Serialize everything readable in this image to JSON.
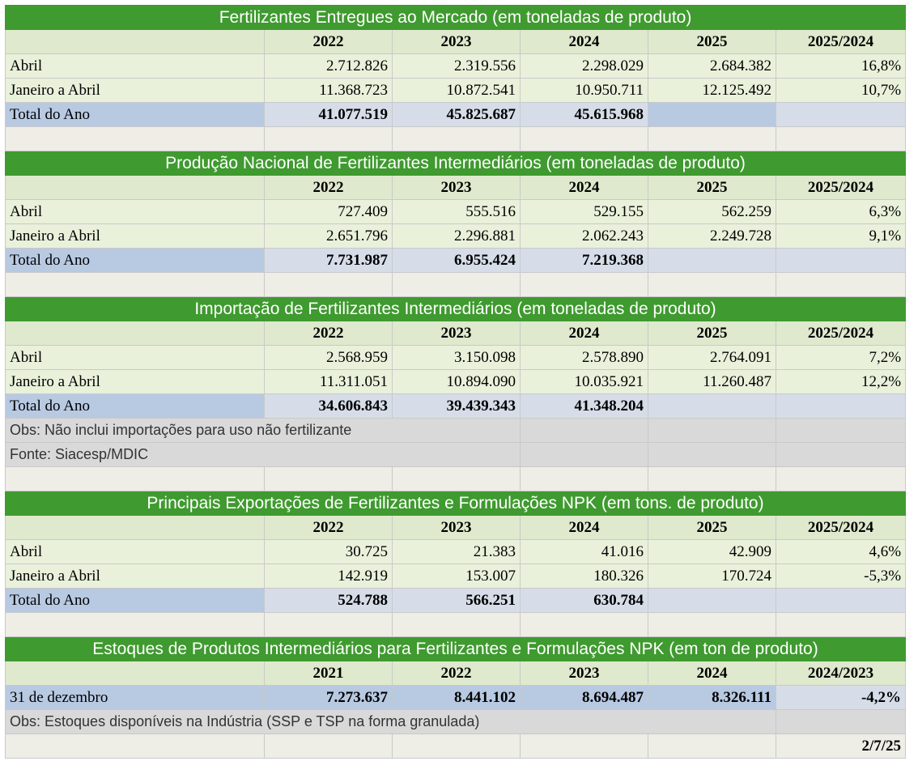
{
  "sec1": {
    "title": "Fertilizantes Entregues ao Mercado (em toneladas de produto)",
    "headers": [
      "2022",
      "2023",
      "2024",
      "2025",
      "2025/2024"
    ],
    "rows": [
      {
        "label": "Abril",
        "values": [
          "2.712.826",
          "2.319.556",
          "2.298.029",
          "2.684.382",
          "16,8%"
        ]
      },
      {
        "label": "Janeiro a Abril",
        "values": [
          "11.368.723",
          "10.872.541",
          "10.950.711",
          "12.125.492",
          "10,7%"
        ]
      }
    ],
    "total": {
      "label": "Total do Ano",
      "values": [
        "41.077.519",
        "45.825.687",
        "45.615.968",
        "",
        ""
      ]
    }
  },
  "sec2": {
    "title": "Produção Nacional de Fertilizantes Intermediários (em toneladas de produto)",
    "headers": [
      "2022",
      "2023",
      "2024",
      "2025",
      "2025/2024"
    ],
    "rows": [
      {
        "label": "Abril",
        "values": [
          "727.409",
          "555.516",
          "529.155",
          "562.259",
          "6,3%"
        ]
      },
      {
        "label": "Janeiro a Abril",
        "values": [
          "2.651.796",
          "2.296.881",
          "2.062.243",
          "2.249.728",
          "9,1%"
        ]
      }
    ],
    "total": {
      "label": "Total do Ano",
      "values": [
        "7.731.987",
        "6.955.424",
        "7.219.368",
        "",
        ""
      ]
    }
  },
  "sec3": {
    "title": "Importação de Fertilizantes Intermediários (em toneladas de produto)",
    "headers": [
      "2022",
      "2023",
      "2024",
      "2025",
      "2025/2024"
    ],
    "rows": [
      {
        "label": "Abril",
        "values": [
          "2.568.959",
          "3.150.098",
          "2.578.890",
          "2.764.091",
          "7,2%"
        ]
      },
      {
        "label": "Janeiro a Abril",
        "values": [
          "11.311.051",
          "10.894.090",
          "10.035.921",
          "11.260.487",
          "12,2%"
        ]
      }
    ],
    "total": {
      "label": "Total do Ano",
      "values": [
        "34.606.843",
        "39.439.343",
        "41.348.204",
        "",
        ""
      ]
    },
    "note": "Obs: Não inclui importações para uso não fertilizante",
    "source": "Fonte: Siacesp/MDIC"
  },
  "sec4": {
    "title": "Principais Exportações de Fertilizantes e Formulações NPK (em tons. de produto)",
    "headers": [
      "2022",
      "2023",
      "2024",
      "2025",
      "2025/2024"
    ],
    "rows": [
      {
        "label": "Abril",
        "values": [
          "30.725",
          "21.383",
          "41.016",
          "42.909",
          "4,6%"
        ]
      },
      {
        "label": "Janeiro a Abril",
        "values": [
          "142.919",
          "153.007",
          "180.326",
          "170.724",
          "-5,3%"
        ]
      }
    ],
    "total": {
      "label": "Total do Ano",
      "values": [
        "524.788",
        "566.251",
        "630.784",
        "",
        ""
      ]
    }
  },
  "sec5": {
    "title": "Estoques de Produtos Intermediários para Fertilizantes e Formulações NPK (em ton de produto)",
    "headers": [
      "2021",
      "2022",
      "2023",
      "2024",
      "2024/2023"
    ],
    "row": {
      "label": "31 de dezembro",
      "values": [
        "7.273.637",
        "8.441.102",
        "8.694.487",
        "8.326.111",
        "-4,2%"
      ]
    },
    "note": "Obs: Estoques disponíveis na Indústria (SSP e TSP na forma granulada)"
  },
  "footer": {
    "date": "2/7/25"
  }
}
